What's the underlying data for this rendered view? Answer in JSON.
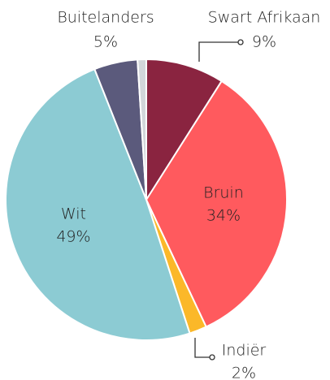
{
  "chart_data": {
    "type": "pie",
    "categories": [
      "Swart Afrikaan",
      "Bruin",
      "Indiër",
      "Wit",
      "Buitelanders",
      null
    ],
    "values": [
      9,
      34,
      2,
      49,
      5,
      1
    ],
    "value_labels": [
      "9%",
      "34%",
      "2%",
      "49%",
      "5%",
      null
    ],
    "colors": [
      "#8a2440",
      "#ff5a5e",
      "#fbb829",
      "#8ccbd3",
      "#5b5a7c",
      "#d2d6da"
    ]
  }
}
